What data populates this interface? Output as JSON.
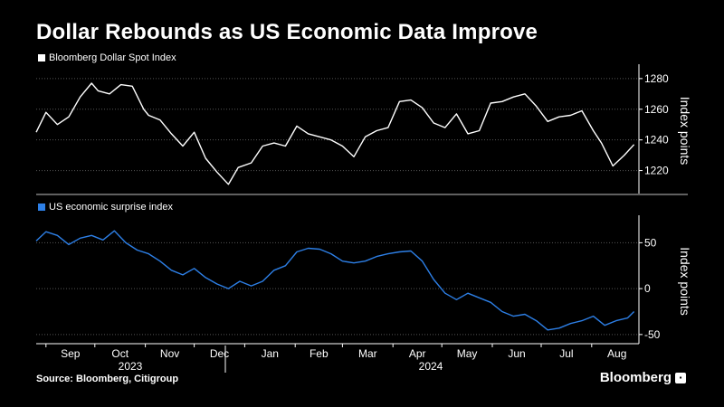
{
  "title": "Dollar Rebounds as US Economic Data Improve",
  "source": "Source: Bloomberg, Citigroup",
  "brand": "Bloomberg",
  "colors": {
    "background": "#000000",
    "dollar": "#ffffff",
    "surprise": "#2d7fe6",
    "grid": "#555555"
  },
  "chart_data": [
    {
      "type": "line",
      "legend": "Bloomberg Dollar Spot Index",
      "ylabel": "Index points",
      "ylim": [
        1205,
        1287
      ],
      "yticks": [
        1220,
        1240,
        1260,
        1280
      ],
      "xlim": [
        "2023-08-26",
        "2024-08-30"
      ],
      "series": [
        {
          "name": "Bloomberg Dollar Spot Index",
          "x": [
            "2023-08-26",
            "2023-09-01",
            "2023-09-08",
            "2023-09-15",
            "2023-09-22",
            "2023-09-29",
            "2023-10-03",
            "2023-10-10",
            "2023-10-17",
            "2023-10-24",
            "2023-10-31",
            "2023-11-03",
            "2023-11-10",
            "2023-11-17",
            "2023-11-24",
            "2023-12-01",
            "2023-12-08",
            "2023-12-15",
            "2023-12-22",
            "2023-12-28",
            "2024-01-05",
            "2024-01-12",
            "2024-01-19",
            "2024-01-26",
            "2024-02-02",
            "2024-02-09",
            "2024-02-16",
            "2024-02-23",
            "2024-03-01",
            "2024-03-08",
            "2024-03-15",
            "2024-03-22",
            "2024-03-29",
            "2024-04-05",
            "2024-04-12",
            "2024-04-19",
            "2024-04-26",
            "2024-05-03",
            "2024-05-10",
            "2024-05-17",
            "2024-05-24",
            "2024-05-31",
            "2024-06-07",
            "2024-06-14",
            "2024-06-21",
            "2024-06-28",
            "2024-07-05",
            "2024-07-12",
            "2024-07-19",
            "2024-07-26",
            "2024-08-02",
            "2024-08-07",
            "2024-08-14",
            "2024-08-21",
            "2024-08-27"
          ],
          "values": [
            1245,
            1258,
            1250,
            1255,
            1268,
            1277,
            1272,
            1270,
            1276,
            1275,
            1260,
            1256,
            1253,
            1244,
            1236,
            1245,
            1228,
            1219,
            1211,
            1222,
            1225,
            1236,
            1238,
            1236,
            1249,
            1244,
            1242,
            1240,
            1236,
            1229,
            1242,
            1246,
            1248,
            1265,
            1266,
            1261,
            1251,
            1248,
            1257,
            1244,
            1246,
            1264,
            1265,
            1268,
            1270,
            1262,
            1252,
            1255,
            1256,
            1259,
            1246,
            1238,
            1223,
            1230,
            1237
          ]
        }
      ]
    },
    {
      "type": "line",
      "legend": "US economic surprise index",
      "ylabel": "Index points",
      "ylim": [
        -60,
        76
      ],
      "yticks": [
        -50,
        0,
        50
      ],
      "xlim": [
        "2023-08-26",
        "2024-08-30"
      ],
      "series": [
        {
          "name": "US economic surprise index",
          "x": [
            "2023-08-26",
            "2023-09-01",
            "2023-09-08",
            "2023-09-15",
            "2023-09-22",
            "2023-09-29",
            "2023-10-06",
            "2023-10-13",
            "2023-10-20",
            "2023-10-27",
            "2023-11-03",
            "2023-11-10",
            "2023-11-17",
            "2023-11-24",
            "2023-12-01",
            "2023-12-08",
            "2023-12-15",
            "2023-12-22",
            "2023-12-29",
            "2024-01-05",
            "2024-01-12",
            "2024-01-19",
            "2024-01-26",
            "2024-02-02",
            "2024-02-09",
            "2024-02-16",
            "2024-02-23",
            "2024-03-01",
            "2024-03-08",
            "2024-03-15",
            "2024-03-22",
            "2024-03-29",
            "2024-04-05",
            "2024-04-12",
            "2024-04-19",
            "2024-04-26",
            "2024-05-03",
            "2024-05-10",
            "2024-05-17",
            "2024-05-24",
            "2024-05-31",
            "2024-06-07",
            "2024-06-14",
            "2024-06-21",
            "2024-06-28",
            "2024-07-05",
            "2024-07-12",
            "2024-07-19",
            "2024-07-26",
            "2024-08-02",
            "2024-08-09",
            "2024-08-16",
            "2024-08-23",
            "2024-08-27"
          ],
          "values": [
            52,
            62,
            58,
            48,
            55,
            58,
            53,
            63,
            50,
            42,
            38,
            30,
            20,
            15,
            22,
            12,
            5,
            0,
            8,
            3,
            8,
            20,
            25,
            40,
            44,
            43,
            38,
            30,
            28,
            30,
            35,
            38,
            40,
            41,
            30,
            10,
            -5,
            -12,
            -5,
            -10,
            -15,
            -25,
            -30,
            -28,
            -35,
            -45,
            -43,
            -38,
            -35,
            -30,
            -40,
            -35,
            -32,
            -25
          ]
        }
      ]
    }
  ],
  "x_axis": {
    "month_labels": [
      "Sep",
      "Oct",
      "Nov",
      "Dec",
      "Jan",
      "Feb",
      "Mar",
      "Apr",
      "May",
      "Jun",
      "Jul",
      "Aug"
    ],
    "year_labels": [
      "2023",
      "2024"
    ]
  }
}
